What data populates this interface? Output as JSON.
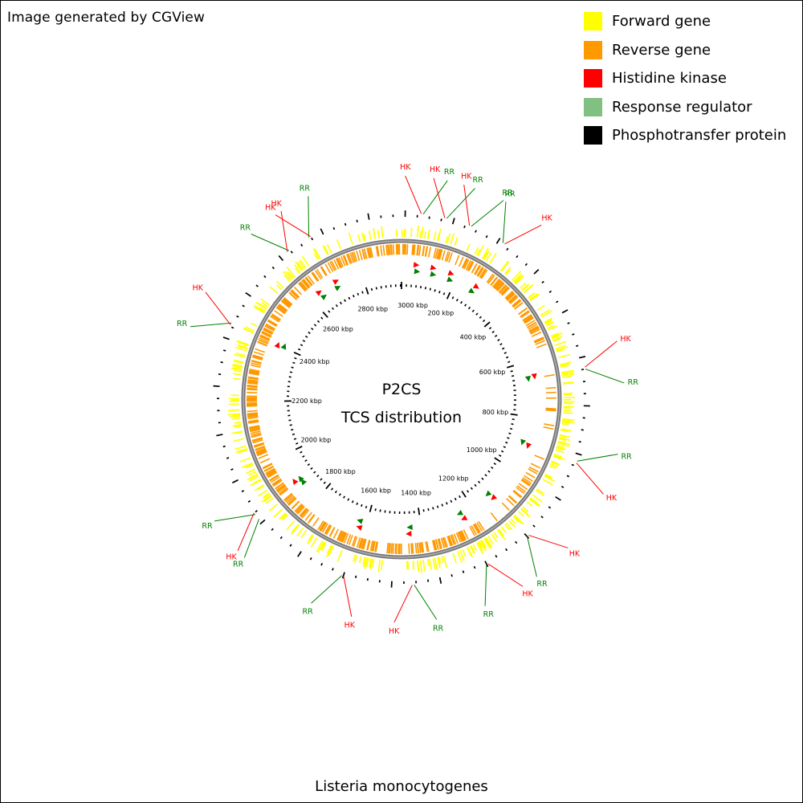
{
  "header": {
    "note": "Image generated by CGView"
  },
  "legend": [
    {
      "label": "Forward gene",
      "color": "#ffff00"
    },
    {
      "label": "Reverse gene",
      "color": "#ff9900"
    },
    {
      "label": "Histidine kinase",
      "color": "#ff0000"
    },
    {
      "label": "Response regulator",
      "color": "#80c080"
    },
    {
      "label": "Phosphotransfer protein",
      "color": "#000000"
    }
  ],
  "map": {
    "title_line1": "P2CS",
    "title_line2": "TCS distribution",
    "organism": "Listeria monocytogenes",
    "genome_length_kbp": 2944,
    "tick_labels": [
      "200 kbp",
      "400 kbp",
      "600 kbp",
      "800 kbp",
      "1000 kbp",
      "1200 kbp",
      "1400 kbp",
      "1600 kbp",
      "1800 kbp",
      "2000 kbp",
      "2200 kbp",
      "2400 kbp",
      "2600 kbp",
      "2800 kbp",
      "3000 kbp"
    ],
    "tick_positions_kbp": [
      200,
      400,
      600,
      800,
      1000,
      1200,
      1400,
      1600,
      1800,
      2000,
      2200,
      2400,
      2600,
      2800,
      3000
    ],
    "features": [
      {
        "label": "HK",
        "kind": "HK",
        "position_kbp": 50,
        "color": "#ff0000"
      },
      {
        "label": "RR",
        "kind": "RR",
        "position_kbp": 55,
        "color": "#008000"
      },
      {
        "label": "HK",
        "kind": "HK",
        "position_kbp": 110,
        "color": "#ff0000"
      },
      {
        "label": "RR",
        "kind": "RR",
        "position_kbp": 115,
        "color": "#008000"
      },
      {
        "label": "HK",
        "kind": "HK",
        "position_kbp": 175,
        "color": "#ff0000"
      },
      {
        "label": "RR",
        "kind": "RR",
        "position_kbp": 180,
        "color": "#008000"
      },
      {
        "label": "RR",
        "kind": "RR",
        "position_kbp": 270,
        "color": "#008000"
      },
      {
        "label": "HK",
        "kind": "HK",
        "position_kbp": 275,
        "color": "#ff0000"
      },
      {
        "label": "HK",
        "kind": "HK",
        "position_kbp": 655,
        "color": "#ff0000"
      },
      {
        "label": "RR",
        "kind": "RR",
        "position_kbp": 660,
        "color": "#008000"
      },
      {
        "label": "RR",
        "kind": "RR",
        "position_kbp": 895,
        "color": "#008000"
      },
      {
        "label": "HK",
        "kind": "HK",
        "position_kbp": 900,
        "color": "#ff0000"
      },
      {
        "label": "HK",
        "kind": "HK",
        "position_kbp": 1120,
        "color": "#ff0000"
      },
      {
        "label": "RR",
        "kind": "RR",
        "position_kbp": 1125,
        "color": "#008000"
      },
      {
        "label": "HK",
        "kind": "HK",
        "position_kbp": 1245,
        "color": "#ff0000"
      },
      {
        "label": "RR",
        "kind": "RR",
        "position_kbp": 1250,
        "color": "#008000"
      },
      {
        "label": "RR",
        "kind": "RR",
        "position_kbp": 1440,
        "color": "#008000"
      },
      {
        "label": "HK",
        "kind": "HK",
        "position_kbp": 1445,
        "color": "#ff0000"
      },
      {
        "label": "HK",
        "kind": "HK",
        "position_kbp": 1620,
        "color": "#ff0000"
      },
      {
        "label": "RR",
        "kind": "RR",
        "position_kbp": 1625,
        "color": "#008000"
      },
      {
        "label": "RR",
        "kind": "RR",
        "position_kbp": 1880,
        "color": "#008000"
      },
      {
        "label": "RR",
        "kind": "RR",
        "position_kbp": 1895,
        "color": "#008000"
      },
      {
        "label": "HK",
        "kind": "HK",
        "position_kbp": 1900,
        "color": "#ff0000"
      },
      {
        "label": "HK",
        "kind": "HK",
        "position_kbp": 2400,
        "color": "#ff0000"
      },
      {
        "label": "RR",
        "kind": "RR",
        "position_kbp": 2405,
        "color": "#008000"
      },
      {
        "label": "HK",
        "kind": "HK",
        "position_kbp": 2635,
        "color": "#ff0000"
      },
      {
        "label": "RR",
        "kind": "RR",
        "position_kbp": 2640,
        "color": "#008000"
      },
      {
        "label": "RR",
        "kind": "RR",
        "position_kbp": 2700,
        "color": "#008000"
      },
      {
        "label": "HK",
        "kind": "HK",
        "position_kbp": 2705,
        "color": "#ff0000"
      }
    ]
  }
}
